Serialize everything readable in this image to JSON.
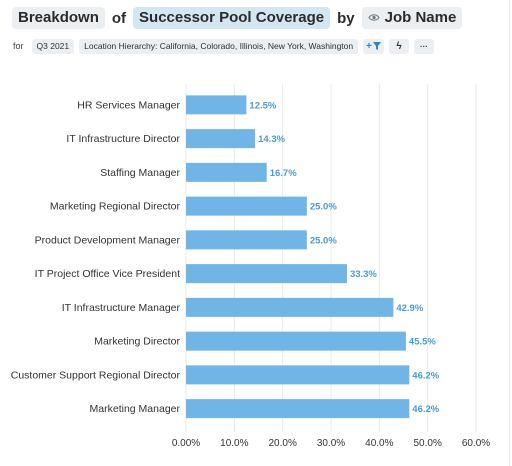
{
  "header": {
    "breakdown": "Breakdown",
    "of": "of",
    "metric": "Successor Pool Coverage",
    "by": "by",
    "dimension": "Job Name",
    "dimension_icon": "eye-icon"
  },
  "filters": {
    "label": "for",
    "period": "Q3 2021",
    "location": "Location Hierarchy: California, Colorado, Illinois, New York, Washington",
    "add_filter_icon": "plus-filter-icon",
    "lightning_icon": "lightning-icon",
    "more_icon": "more-icon",
    "add_filter_text": "+",
    "lightning_text": "ϟ",
    "more_text": "···"
  },
  "colors": {
    "bar": "#70b5e5",
    "value_label": "#4a9ad6",
    "grid": "#e9e9e9",
    "accent_chip": "#d3e7f3"
  },
  "chart_data": {
    "type": "bar",
    "orientation": "horizontal",
    "categories": [
      "HR Services Manager",
      "IT Infrastructure Director",
      "Staffing Manager",
      "Marketing Regional Director",
      "Product Development Manager",
      "IT Project Office Vice President",
      "IT Infrastructure Manager",
      "Marketing Director",
      "Customer Support Regional Director",
      "Marketing Manager"
    ],
    "values": [
      12.5,
      14.3,
      16.7,
      25.0,
      25.0,
      33.3,
      42.9,
      45.5,
      46.2,
      46.2
    ],
    "value_labels": [
      "12.5%",
      "14.3%",
      "16.7%",
      "25.0%",
      "25.0%",
      "33.3%",
      "42.9%",
      "45.5%",
      "46.2%",
      "46.2%"
    ],
    "xlim": [
      0,
      60
    ],
    "x_ticks": [
      "0.00%",
      "10.0%",
      "20.0%",
      "30.0%",
      "40.0%",
      "50.0%",
      "60.0%"
    ],
    "grid": true
  }
}
